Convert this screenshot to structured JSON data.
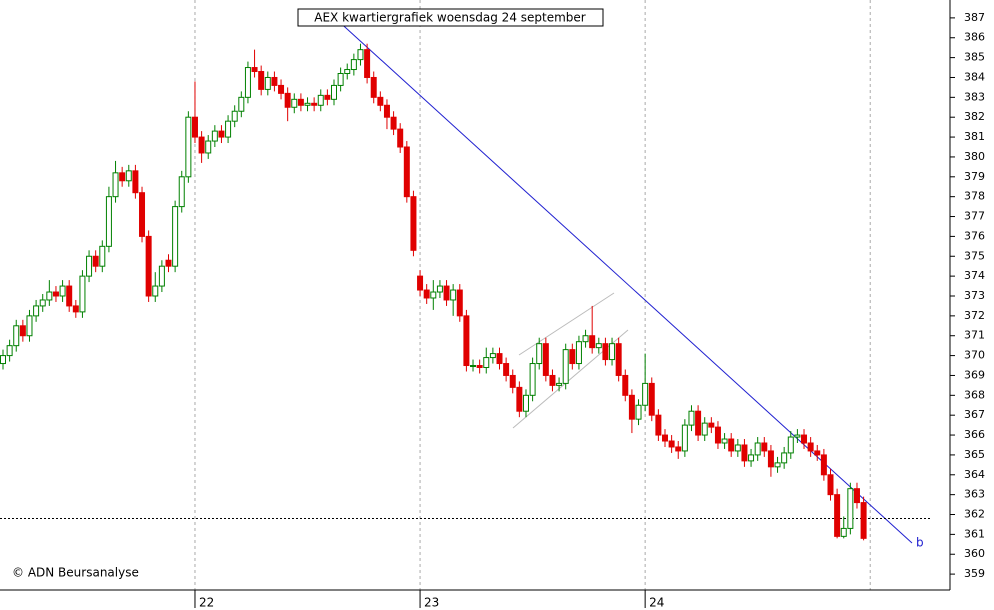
{
  "chart_data": {
    "type": "candlestick",
    "title": "AEX kwartiergrafiek woensdag 24 september",
    "footer": "© ADN Beursanalyse",
    "trendline_label": "b",
    "categories": [
      null,
      null,
      null,
      null,
      null,
      null,
      null,
      null,
      null,
      null,
      null,
      null,
      null,
      null,
      null,
      null,
      null,
      null,
      null,
      null,
      null,
      null,
      null,
      null,
      null,
      null,
      null,
      null,
      null,
      "22",
      null,
      null,
      null,
      null,
      null,
      null,
      null,
      null,
      null,
      null,
      null,
      null,
      null,
      null,
      null,
      null,
      null,
      null,
      null,
      null,
      null,
      null,
      null,
      null,
      null,
      null,
      null,
      null,
      null,
      null,
      null,
      null,
      null,
      "23",
      null,
      null,
      null,
      null,
      null,
      null,
      null,
      null,
      null,
      null,
      null,
      null,
      null,
      null,
      null,
      null,
      null,
      null,
      null,
      null,
      null,
      null,
      null,
      null,
      null,
      null,
      null,
      null,
      null,
      null,
      null,
      null,
      null,
      "24",
      null,
      null,
      null,
      null,
      null,
      null,
      null,
      null,
      null,
      null,
      null,
      null,
      null,
      null,
      null,
      null,
      null,
      null,
      null,
      null,
      null,
      null,
      null,
      null,
      null,
      null,
      null,
      null,
      null,
      null,
      null,
      null,
      null
    ],
    "open": [
      369.6,
      370.0,
      370.5,
      371.5,
      371.0,
      372.0,
      372.5,
      372.8,
      373.2,
      373.0,
      373.5,
      372.5,
      372.2,
      374.0,
      375.0,
      374.5,
      375.5,
      378.0,
      379.2,
      378.8,
      379.3,
      378.2,
      376.0,
      373.0,
      373.5,
      374.8,
      374.5,
      377.5,
      379.0,
      382.0,
      381.0,
      380.2,
      380.8,
      381.3,
      381.0,
      381.8,
      382.3,
      383.0,
      384.5,
      384.3,
      383.4,
      384.0,
      383.6,
      383.2,
      382.5,
      382.9,
      382.6,
      382.7,
      382.6,
      383.1,
      382.9,
      383.6,
      384.2,
      384.4,
      384.9,
      385.4,
      384.0,
      383.0,
      382.6,
      382.0,
      381.4,
      380.5,
      378.0,
      374.0,
      373.3,
      372.9,
      373.2,
      373.5,
      372.8,
      373.3,
      372.0,
      369.5,
      369.5,
      369.4,
      369.9,
      370.1,
      369.6,
      369.0,
      368.4,
      367.2,
      368.0,
      369.6,
      370.6,
      369.0,
      368.5,
      368.6,
      370.3,
      369.6,
      370.7,
      371.0,
      370.4,
      370.6,
      369.8,
      370.6,
      369.0,
      368.0,
      366.8,
      367.5,
      368.6,
      367.0,
      366.0,
      365.7,
      365.4,
      365.2,
      366.5,
      367.2,
      366.0,
      366.6,
      366.4,
      365.6,
      365.8,
      365.2,
      365.5,
      364.7,
      365.0,
      365.6,
      365.2,
      364.4,
      364.6,
      365.1,
      365.9,
      366.0,
      365.6,
      365.2,
      365.0,
      364.0,
      363.0,
      360.9,
      361.3,
      363.3,
      362.6
    ],
    "high": [
      370.3,
      370.8,
      371.8,
      371.8,
      372.3,
      372.8,
      373.1,
      373.8,
      373.5,
      373.8,
      373.8,
      372.8,
      374.3,
      375.3,
      375.3,
      375.8,
      378.5,
      379.8,
      379.5,
      379.6,
      379.6,
      378.5,
      376.3,
      374.2,
      374.8,
      375.1,
      377.8,
      379.3,
      382.3,
      383.8,
      381.3,
      381.1,
      381.6,
      381.6,
      382.1,
      382.6,
      383.3,
      384.8,
      385.4,
      384.6,
      384.3,
      384.3,
      383.9,
      383.5,
      383.2,
      383.2,
      383.0,
      383.0,
      383.4,
      383.4,
      383.9,
      384.5,
      384.7,
      385.2,
      385.7,
      385.7,
      384.3,
      383.3,
      382.9,
      382.3,
      381.7,
      380.8,
      378.3,
      374.3,
      373.6,
      373.8,
      373.8,
      373.8,
      373.6,
      373.6,
      372.3,
      369.8,
      369.8,
      370.4,
      370.4,
      370.4,
      369.9,
      369.3,
      368.7,
      368.3,
      369.9,
      370.9,
      370.9,
      369.3,
      368.9,
      370.6,
      370.6,
      371.0,
      371.3,
      372.5,
      370.9,
      370.9,
      370.9,
      370.9,
      369.3,
      368.3,
      367.8,
      370.1,
      368.9,
      367.3,
      366.3,
      366.0,
      365.7,
      366.8,
      367.5,
      367.5,
      366.9,
      366.9,
      366.7,
      366.1,
      366.1,
      365.8,
      365.8,
      365.3,
      365.9,
      365.9,
      365.5,
      364.9,
      365.4,
      366.2,
      366.3,
      366.3,
      365.9,
      365.5,
      365.3,
      364.3,
      363.3,
      361.9,
      363.6,
      363.6,
      362.9
    ],
    "low": [
      369.3,
      369.7,
      370.2,
      370.7,
      370.7,
      371.7,
      372.2,
      372.5,
      372.7,
      372.7,
      372.2,
      371.9,
      371.9,
      373.7,
      374.2,
      374.2,
      375.2,
      377.7,
      378.5,
      378.5,
      377.9,
      375.7,
      372.7,
      372.7,
      373.2,
      374.2,
      374.2,
      377.2,
      378.7,
      380.7,
      379.7,
      379.9,
      380.5,
      380.7,
      380.7,
      381.5,
      382.0,
      382.7,
      384.0,
      383.1,
      383.1,
      383.3,
      382.9,
      381.8,
      382.2,
      382.3,
      382.3,
      382.3,
      382.3,
      382.6,
      382.6,
      383.3,
      383.9,
      384.1,
      384.6,
      383.7,
      382.7,
      382.3,
      381.4,
      381.1,
      380.2,
      377.7,
      375.0,
      373.0,
      372.6,
      372.3,
      372.9,
      372.5,
      372.0,
      371.7,
      369.2,
      369.2,
      369.1,
      369.1,
      369.6,
      369.3,
      368.7,
      368.1,
      366.9,
      366.9,
      367.7,
      369.3,
      368.7,
      368.2,
      368.2,
      368.3,
      369.3,
      369.3,
      370.4,
      370.1,
      370.1,
      369.5,
      369.5,
      368.7,
      367.7,
      366.1,
      366.5,
      367.2,
      366.7,
      365.7,
      365.4,
      365.1,
      364.8,
      364.9,
      366.2,
      365.7,
      365.7,
      366.1,
      365.3,
      365.3,
      364.9,
      364.9,
      364.4,
      364.4,
      364.7,
      364.9,
      363.9,
      364.1,
      364.3,
      364.8,
      365.6,
      365.3,
      364.9,
      364.7,
      363.7,
      362.7,
      360.8,
      360.8,
      361.0,
      362.3,
      360.7
    ],
    "close": [
      370.0,
      370.5,
      371.5,
      371.0,
      372.0,
      372.5,
      372.8,
      373.2,
      373.0,
      373.5,
      372.5,
      372.2,
      374.0,
      375.0,
      374.5,
      375.5,
      378.0,
      379.2,
      378.8,
      379.3,
      378.2,
      376.0,
      373.0,
      373.5,
      374.5,
      374.5,
      377.5,
      379.0,
      382.0,
      381.0,
      380.2,
      380.8,
      381.3,
      381.0,
      381.8,
      382.3,
      383.0,
      384.5,
      384.3,
      383.4,
      384.0,
      383.6,
      383.2,
      382.5,
      382.9,
      382.6,
      382.7,
      382.6,
      383.1,
      382.9,
      383.6,
      384.2,
      384.4,
      384.9,
      385.4,
      384.0,
      383.0,
      382.6,
      382.0,
      381.4,
      380.5,
      378.0,
      375.3,
      373.3,
      372.9,
      373.2,
      373.5,
      372.8,
      373.3,
      372.0,
      369.5,
      369.5,
      369.4,
      369.9,
      370.1,
      369.6,
      369.0,
      368.4,
      367.2,
      368.0,
      369.6,
      370.6,
      369.0,
      368.5,
      368.6,
      370.3,
      369.6,
      370.7,
      371.0,
      370.4,
      370.6,
      369.8,
      370.6,
      369.0,
      368.0,
      366.8,
      367.5,
      368.6,
      367.0,
      366.0,
      365.7,
      365.4,
      365.2,
      366.5,
      367.2,
      366.0,
      366.6,
      366.4,
      365.6,
      365.8,
      365.2,
      365.5,
      364.7,
      365.0,
      365.6,
      365.2,
      364.4,
      364.6,
      365.1,
      365.9,
      366.0,
      365.6,
      365.2,
      365.0,
      364.0,
      363.0,
      360.9,
      361.3,
      363.3,
      362.6,
      360.8
    ],
    "up_color": "#008000",
    "down_color": "#e00000",
    "reference_line": 361.8,
    "ylim": [
      358.2,
      387.9
    ],
    "yticks": [
      359,
      360,
      361,
      362,
      363,
      364,
      365,
      366,
      367,
      368,
      369,
      370,
      371,
      372,
      373,
      374,
      375,
      376,
      377,
      378,
      379,
      380,
      381,
      382,
      383,
      384,
      385,
      386,
      387
    ],
    "grid": true
  }
}
